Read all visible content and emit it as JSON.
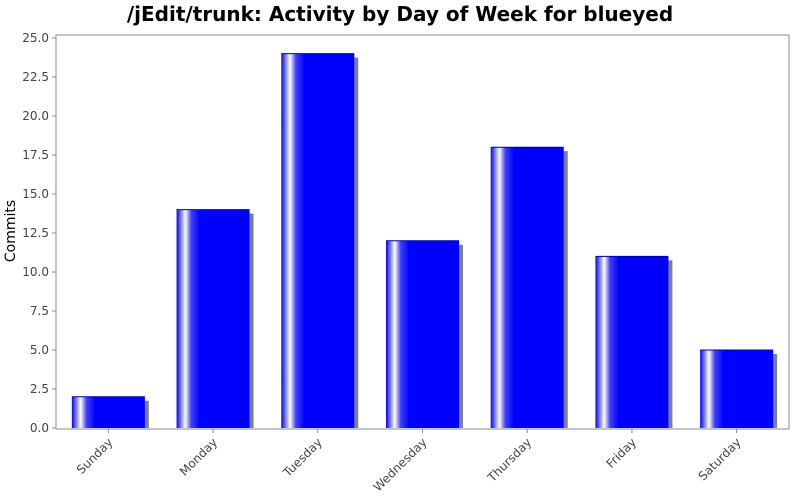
{
  "chart_data": {
    "type": "bar",
    "title": "/jEdit/trunk: Activity by Day of Week for blueyed",
    "xlabel": "",
    "ylabel": "Commits",
    "categories": [
      "Sunday",
      "Monday",
      "Tuesday",
      "Wednesday",
      "Thursday",
      "Friday",
      "Saturday"
    ],
    "values": [
      2,
      14,
      24,
      12,
      18,
      11,
      5
    ],
    "ylim": [
      0,
      25
    ],
    "yticks": [
      "0.0",
      "2.5",
      "5.0",
      "7.5",
      "10.0",
      "12.5",
      "15.0",
      "17.5",
      "20.0",
      "22.5",
      "25.0"
    ],
    "grid": false,
    "legend": "none",
    "colors": {
      "bar": "#0000ff",
      "bar_highlight": "#ffffff",
      "shadow": "#808080",
      "plot_border": "#888888"
    }
  }
}
